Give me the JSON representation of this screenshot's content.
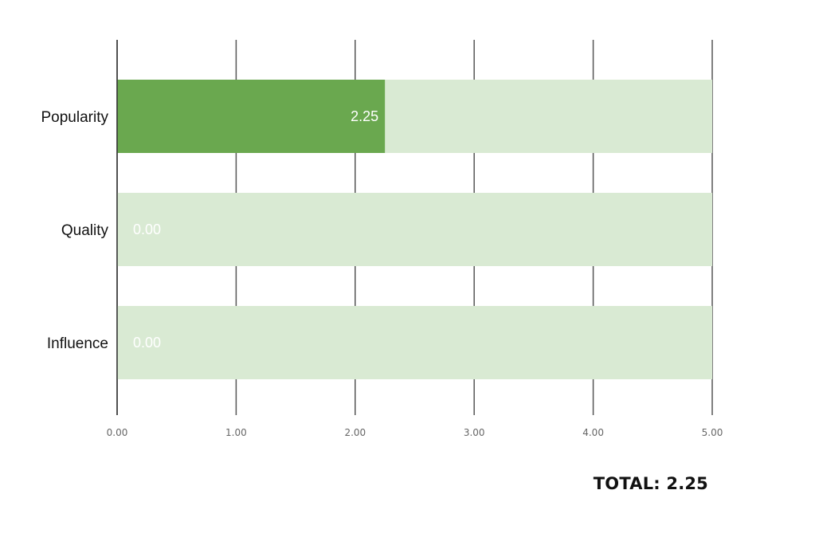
{
  "chart_data": {
    "type": "bar",
    "orientation": "horizontal",
    "categories": [
      "Popularity",
      "Quality",
      "Influence"
    ],
    "values": [
      2.25,
      0.0,
      0.0
    ],
    "value_labels": [
      "2.25",
      "0.00",
      "0.00"
    ],
    "max": 5,
    "xlim": [
      0,
      5
    ],
    "xticks": [
      "0.00",
      "1.00",
      "2.00",
      "3.00",
      "4.00",
      "5.00"
    ],
    "grid": true,
    "colors": {
      "fill": "#6aa84f",
      "track": "#d9ead3",
      "grid": "#555555"
    }
  },
  "total_text": "TOTAL: 2.25"
}
